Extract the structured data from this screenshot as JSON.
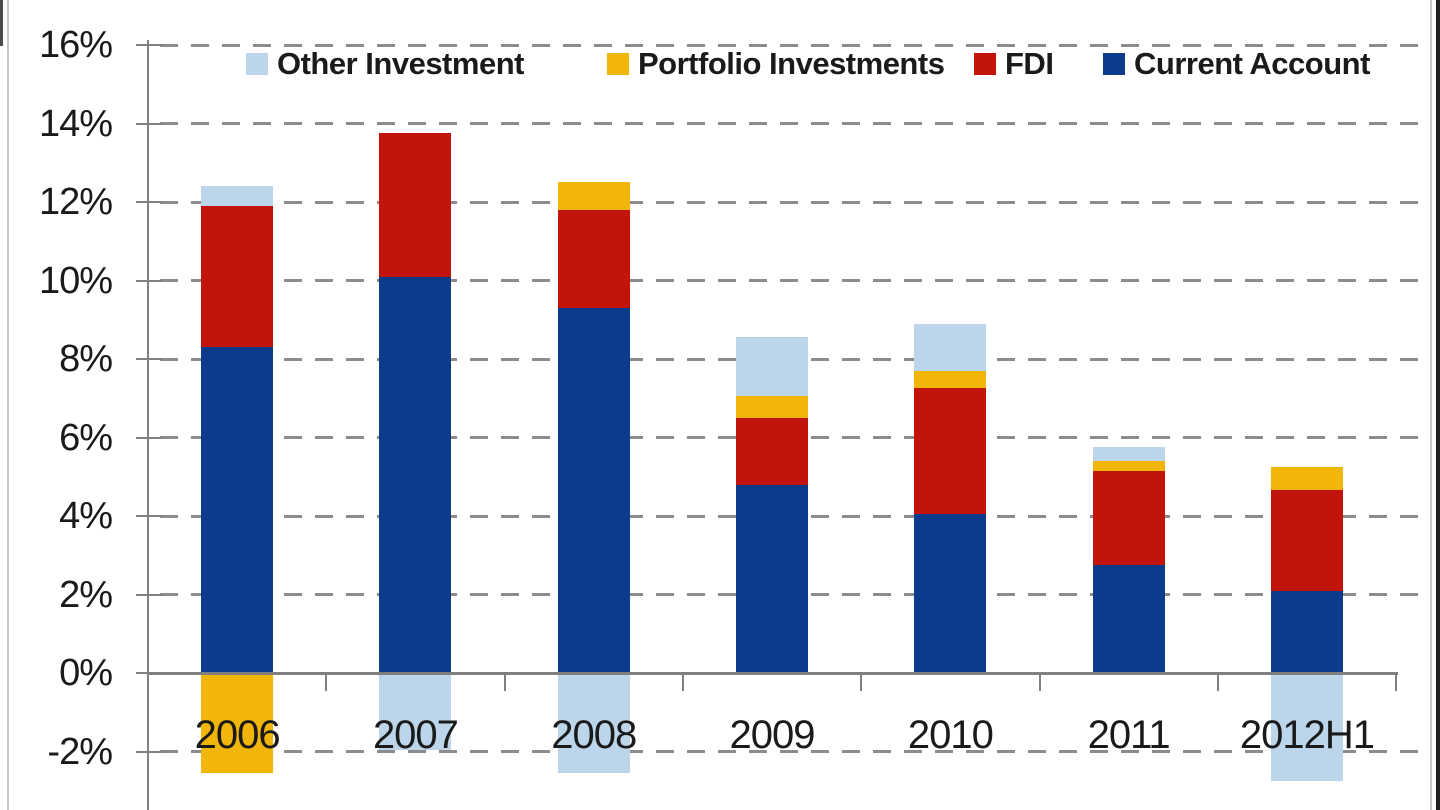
{
  "chart_data": {
    "type": "bar",
    "stacked": true,
    "title": "",
    "categories": [
      "2006",
      "2007",
      "2008",
      "2009",
      "2010",
      "2011",
      "2012H1"
    ],
    "series": [
      {
        "name": "Other Investment",
        "color": "#BCD5EA",
        "values": [
          0.5,
          -1.95,
          -2.55,
          1.5,
          1.2,
          0.35,
          -2.75
        ]
      },
      {
        "name": "Portfolio Investments",
        "color": "#F2B60A",
        "values": [
          -2.55,
          0,
          0.7,
          0.55,
          0.45,
          0.25,
          0.6
        ]
      },
      {
        "name": "FDI",
        "color": "#C3140C",
        "values": [
          3.6,
          3.65,
          2.5,
          1.7,
          3.2,
          2.4,
          2.55
        ]
      },
      {
        "name": "Current Account",
        "color": "#0D3B8C",
        "values": [
          8.3,
          10.1,
          9.3,
          4.8,
          4.05,
          2.75,
          2.1
        ]
      }
    ],
    "stack_order": [
      "Current Account",
      "FDI",
      "Portfolio Investments",
      "Other Investment"
    ],
    "y_axis": {
      "unit": "%",
      "tick_values": [
        16,
        14,
        12,
        10,
        8,
        6,
        4,
        2,
        0,
        -2
      ],
      "tick_labels": [
        "16%",
        "14%",
        "12%",
        "10%",
        "8%",
        "6%",
        "4%",
        "2%",
        "0%",
        "-2%"
      ],
      "gridline_values": [
        16,
        14,
        12,
        10,
        8,
        6,
        4,
        2,
        -2
      ],
      "range_visible": [
        -3.5,
        16
      ]
    },
    "x_axis": {
      "label": ""
    },
    "legend": {
      "position": "top",
      "order": [
        "Other Investment",
        "Portfolio Investments",
        "FDI",
        "Current Account"
      ]
    },
    "grid": "dashed-horizontal",
    "colors": {
      "axis": "#7f7f7f",
      "gridline": "#8c8c8c",
      "text": "#1a1a1a",
      "background": "#ffffff"
    }
  }
}
